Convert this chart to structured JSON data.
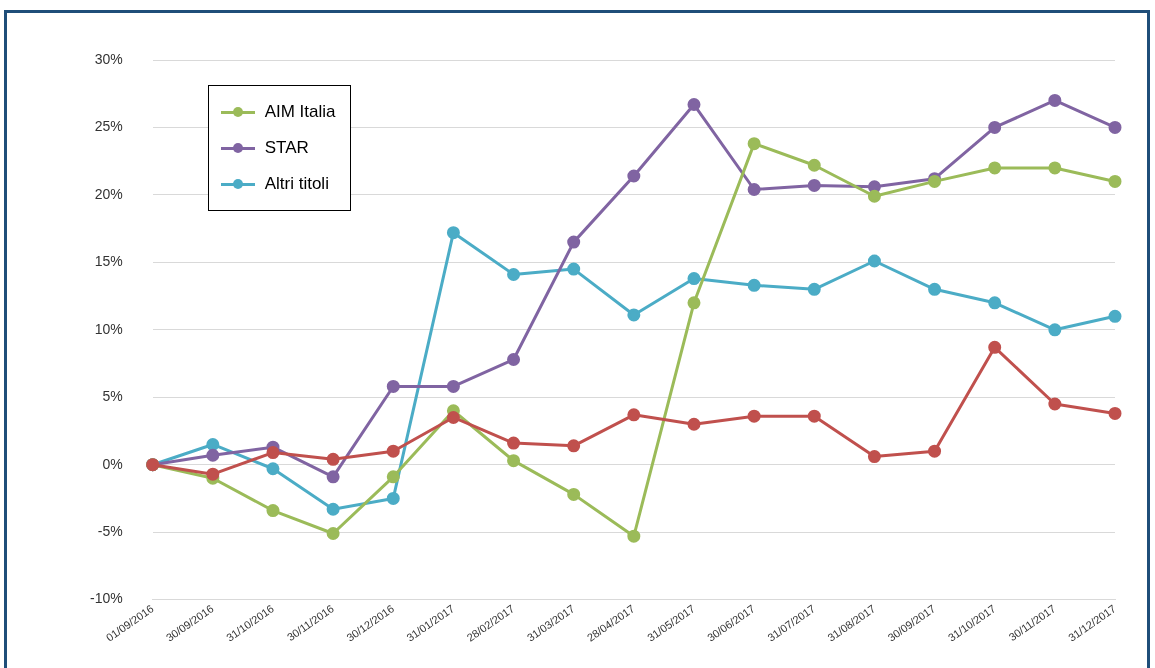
{
  "chart_data": {
    "type": "line",
    "categories": [
      "01/09/2016",
      "30/09/2016",
      "31/10/2016",
      "30/11/2016",
      "30/12/2016",
      "31/01/2017",
      "28/02/2017",
      "31/03/2017",
      "28/04/2017",
      "31/05/2017",
      "30/06/2017",
      "31/07/2017",
      "31/08/2017",
      "30/09/2017",
      "31/10/2017",
      "30/11/2017",
      "31/12/2017"
    ],
    "series": [
      {
        "color": "#c0504d",
        "values": [
          0,
          -0.7,
          0.9,
          0.4,
          1.0,
          3.5,
          1.6,
          1.4,
          3.7,
          3.0,
          3.6,
          3.6,
          0.6,
          1.0,
          8.7,
          4.5,
          3.8
        ]
      },
      {
        "name": "AIM Italia",
        "color": "#9bbb59",
        "values": [
          0,
          -1.0,
          -3.4,
          -5.1,
          -0.9,
          4.0,
          0.3,
          -2.2,
          -5.3,
          12.0,
          23.8,
          22.2,
          19.9,
          21.0,
          22.0,
          22.0,
          21.0
        ]
      },
      {
        "name": "STAR",
        "color": "#8064a2",
        "values": [
          0,
          0.7,
          1.3,
          -0.9,
          5.8,
          5.8,
          7.8,
          16.5,
          21.4,
          26.7,
          20.4,
          20.7,
          20.6,
          21.2,
          25.0,
          27.0,
          25.0
        ]
      },
      {
        "name": "Altri titoli",
        "color": "#4bacc6",
        "values": [
          0,
          1.5,
          -0.3,
          -3.3,
          -2.5,
          17.2,
          14.1,
          14.5,
          11.1,
          13.8,
          13.3,
          13.0,
          15.1,
          13.0,
          12.0,
          10.0,
          11.0
        ]
      }
    ],
    "ylim": [
      -10,
      30
    ],
    "yticks": [
      {
        "value": -10,
        "label": "-10%"
      },
      {
        "value": -5,
        "label": "-5%"
      },
      {
        "value": 0,
        "label": "0%"
      },
      {
        "value": 5,
        "label": "5%"
      },
      {
        "value": 10,
        "label": "10%"
      },
      {
        "value": 15,
        "label": "15%"
      },
      {
        "value": 20,
        "label": "20%"
      },
      {
        "value": 25,
        "label": "25%"
      },
      {
        "value": 30,
        "label": "30%"
      }
    ],
    "grid": "y",
    "legend": "top left",
    "marker": "circle",
    "line_style": "solid"
  }
}
